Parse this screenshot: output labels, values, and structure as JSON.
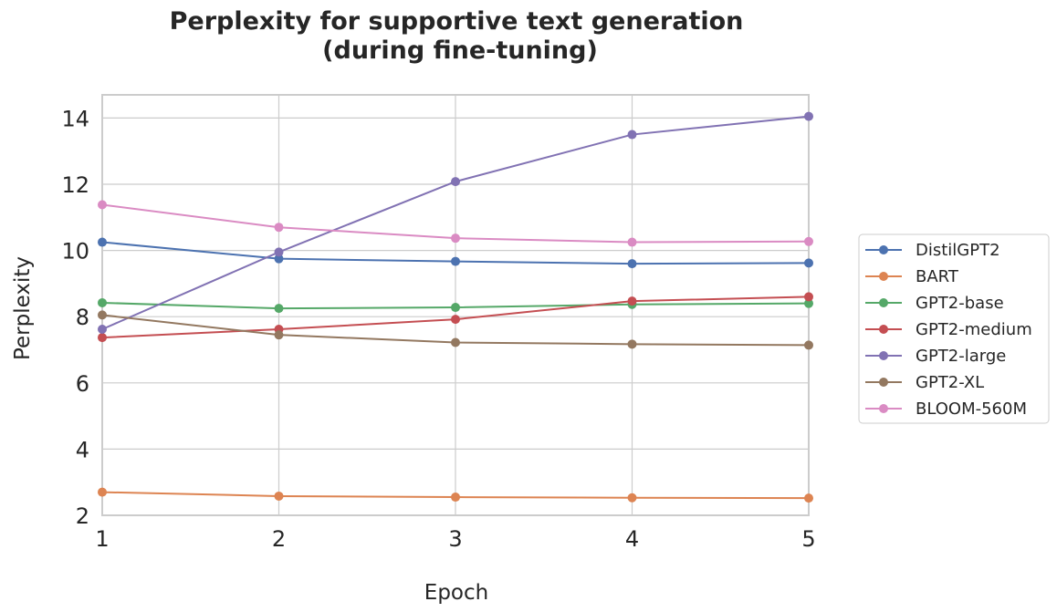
{
  "chart_data": {
    "type": "line",
    "title_lines": [
      "Perplexity for supportive text generation",
      "(during fine-tuning)"
    ],
    "xlabel": "Epoch",
    "ylabel": "Perplexity",
    "x": [
      1,
      2,
      3,
      4,
      5
    ],
    "xlim": [
      1,
      5
    ],
    "ylim": [
      2,
      14.7
    ],
    "xticks": [
      "1",
      "2",
      "3",
      "4",
      "5"
    ],
    "yticks": [
      "2",
      "4",
      "6",
      "8",
      "10",
      "12",
      "14"
    ],
    "grid": true,
    "legend_position": "right",
    "series": [
      {
        "name": "DistilGPT2",
        "color": "#4c72b0",
        "values": [
          10.25,
          9.75,
          9.67,
          9.6,
          9.62
        ]
      },
      {
        "name": "BART",
        "color": "#dd8452",
        "values": [
          2.7,
          2.58,
          2.55,
          2.53,
          2.52
        ]
      },
      {
        "name": "GPT2-base",
        "color": "#55a868",
        "values": [
          8.42,
          8.25,
          8.28,
          8.37,
          8.4
        ]
      },
      {
        "name": "GPT2-medium",
        "color": "#c44e52",
        "values": [
          7.37,
          7.62,
          7.92,
          8.47,
          8.6
        ]
      },
      {
        "name": "GPT2-large",
        "color": "#8172b3",
        "values": [
          7.62,
          9.95,
          12.08,
          13.5,
          14.05
        ]
      },
      {
        "name": "GPT2-XL",
        "color": "#937860",
        "values": [
          8.05,
          7.45,
          7.22,
          7.17,
          7.14
        ]
      },
      {
        "name": "BLOOM-560M",
        "color": "#da8bc3",
        "values": [
          11.38,
          10.7,
          10.37,
          10.25,
          10.27
        ]
      }
    ]
  }
}
